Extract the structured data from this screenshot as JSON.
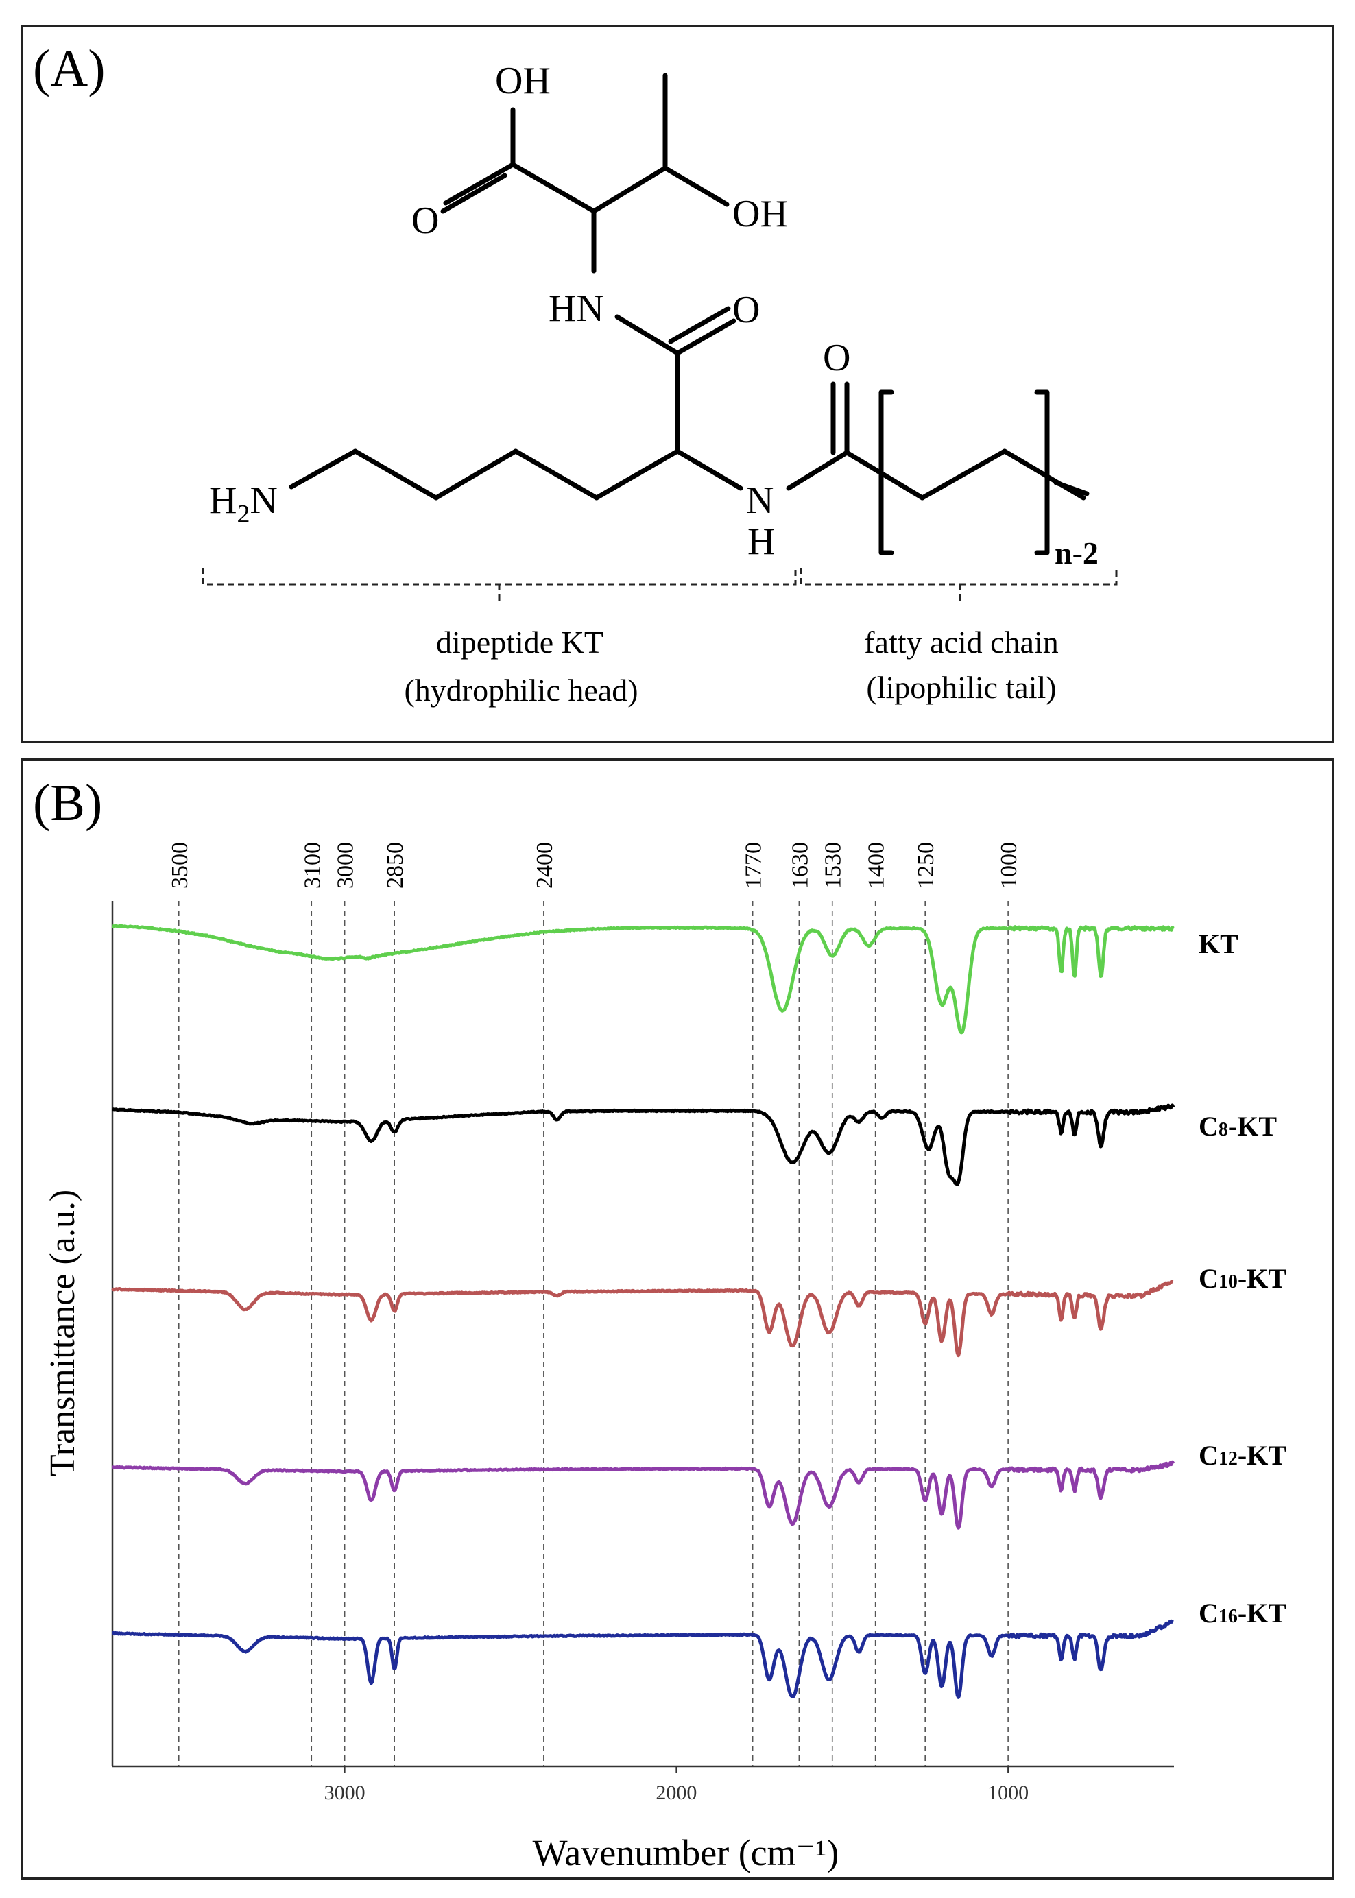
{
  "panel_a": {
    "label": "(A)",
    "atoms": {
      "oh_top": "OH",
      "o_acid": "O",
      "oh_side": "OH",
      "hn": "HN",
      "o_amide1": "O",
      "o_amide2": "O",
      "h2n": "H",
      "h2n_sub": "2",
      "h2n_n": "N",
      "nh_n": "N",
      "nh_h": "H",
      "n_minus_2": "n-2"
    },
    "head_label": [
      "dipeptide KT",
      "(hydrophilic head)"
    ],
    "tail_label": [
      "fatty acid chain",
      "(lipophilic tail)"
    ]
  },
  "panel_b": {
    "label": "(B)",
    "colors": {
      "KT": "#5fcf4d",
      "C8-KT": "#000000",
      "C10-KT": "#b85454",
      "C12-KT": "#8d3ca8",
      "C16-KT": "#1f2c98"
    },
    "chart_data": {
      "type": "line",
      "xlabel": "Wavenumber (cm⁻¹)",
      "ylabel": "Transmittance (a.u.)",
      "xlim": [
        3700,
        500
      ],
      "x_reversed": true,
      "xticks": [
        "3000",
        "2000",
        "1000"
      ],
      "xtick_values": [
        3000,
        2000,
        1000
      ],
      "reference_lines": [
        3500,
        3100,
        3000,
        2850,
        2400,
        1770,
        1630,
        1530,
        1400,
        1250,
        1000
      ],
      "reference_labels": [
        "3500",
        "3100",
        "3000",
        "2850",
        "2400",
        "1770",
        "1630",
        "1530",
        "1400",
        "1250",
        "1000"
      ],
      "series": [
        {
          "name": "KT",
          "name_main": "C",
          "name_sub": "",
          "name_rest": "",
          "label": "KT",
          "offset": 0,
          "baseline": [
            [
              3700,
              0
            ],
            [
              3600,
              3
            ],
            [
              3500,
              8
            ],
            [
              3400,
              16
            ],
            [
              3300,
              28
            ],
            [
              3200,
              38
            ],
            [
              3100,
              43
            ],
            [
              3000,
              45
            ],
            [
              2900,
              44
            ],
            [
              2800,
              37
            ],
            [
              2700,
              30
            ],
            [
              2600,
              22
            ],
            [
              2500,
              15
            ],
            [
              2400,
              9
            ],
            [
              2300,
              6
            ],
            [
              2200,
              4
            ],
            [
              2100,
              3
            ],
            [
              2000,
              3
            ],
            [
              1900,
              3
            ],
            [
              1800,
              4
            ],
            [
              600,
              4
            ],
            [
              500,
              4
            ]
          ],
          "peaks": [
            [
              3050,
              4,
              60
            ],
            [
              2930,
              3,
              20
            ],
            [
              1680,
              120,
              45
            ],
            [
              1530,
              40,
              30
            ],
            [
              1420,
              25,
              25
            ],
            [
              1200,
              110,
              30
            ],
            [
              1140,
              150,
              28
            ],
            [
              840,
              65,
              8
            ],
            [
              800,
              70,
              8
            ],
            [
              720,
              70,
              10
            ]
          ]
        },
        {
          "name": "C8-KT",
          "name_main": "C",
          "name_sub": "8",
          "name_rest": "-KT",
          "label": "",
          "offset": 0,
          "baseline": [
            [
              3700,
              0
            ],
            [
              3500,
              4
            ],
            [
              3300,
              14
            ],
            [
              3000,
              18
            ],
            [
              2800,
              14
            ],
            [
              2600,
              8
            ],
            [
              2400,
              3
            ],
            [
              2200,
              2
            ],
            [
              1800,
              2
            ],
            [
              600,
              4
            ],
            [
              500,
              -5
            ]
          ],
          "peaks": [
            [
              3280,
              6,
              50
            ],
            [
              2920,
              30,
              25
            ],
            [
              2850,
              18,
              15
            ],
            [
              2360,
              12,
              15
            ],
            [
              1650,
              75,
              50
            ],
            [
              1540,
              60,
              40
            ],
            [
              1450,
              15,
              20
            ],
            [
              1380,
              10,
              15
            ],
            [
              1240,
              55,
              25
            ],
            [
              1180,
              80,
              20
            ],
            [
              1150,
              95,
              20
            ],
            [
              840,
              30,
              8
            ],
            [
              800,
              35,
              8
            ],
            [
              720,
              50,
              12
            ]
          ]
        },
        {
          "name": "C10-KT",
          "name_main": "C",
          "name_sub": "10",
          "name_rest": "-KT",
          "label": "",
          "offset": 0,
          "baseline": [
            [
              3700,
              0
            ],
            [
              3000,
              8
            ],
            [
              2400,
              4
            ],
            [
              1800,
              2
            ],
            [
              600,
              10
            ],
            [
              500,
              -12
            ]
          ],
          "peaks": [
            [
              3300,
              25,
              35
            ],
            [
              2920,
              38,
              20
            ],
            [
              2850,
              25,
              12
            ],
            [
              2360,
              6,
              15
            ],
            [
              1720,
              60,
              20
            ],
            [
              1650,
              80,
              30
            ],
            [
              1540,
              60,
              30
            ],
            [
              1450,
              20,
              15
            ],
            [
              1250,
              45,
              15
            ],
            [
              1200,
              70,
              15
            ],
            [
              1150,
              90,
              15
            ],
            [
              1050,
              30,
              15
            ],
            [
              840,
              35,
              8
            ],
            [
              800,
              35,
              8
            ],
            [
              720,
              50,
              12
            ]
          ]
        },
        {
          "name": "C12-KT",
          "name_main": "C",
          "name_sub": "12",
          "name_rest": "-KT",
          "label": "",
          "offset": 0,
          "baseline": [
            [
              3700,
              0
            ],
            [
              3000,
              6
            ],
            [
              2400,
              3
            ],
            [
              1800,
              2
            ],
            [
              600,
              4
            ],
            [
              500,
              -6
            ]
          ],
          "peaks": [
            [
              3300,
              20,
              35
            ],
            [
              2920,
              42,
              18
            ],
            [
              2850,
              28,
              12
            ],
            [
              1720,
              55,
              20
            ],
            [
              1650,
              80,
              30
            ],
            [
              1540,
              55,
              30
            ],
            [
              1450,
              20,
              15
            ],
            [
              1250,
              45,
              15
            ],
            [
              1200,
              65,
              15
            ],
            [
              1150,
              85,
              15
            ],
            [
              1050,
              25,
              15
            ],
            [
              840,
              30,
              8
            ],
            [
              800,
              30,
              8
            ],
            [
              720,
              40,
              12
            ]
          ]
        },
        {
          "name": "C16-KT",
          "name_main": "C",
          "name_sub": "16",
          "name_rest": "-KT",
          "label": "",
          "offset": 0,
          "baseline": [
            [
              3700,
              0
            ],
            [
              3000,
              8
            ],
            [
              2400,
              4
            ],
            [
              1800,
              2
            ],
            [
              600,
              4
            ],
            [
              500,
              -18
            ]
          ],
          "peaks": [
            [
              3300,
              22,
              35
            ],
            [
              2920,
              65,
              15
            ],
            [
              2850,
              45,
              10
            ],
            [
              1720,
              65,
              20
            ],
            [
              1650,
              90,
              30
            ],
            [
              1540,
              65,
              30
            ],
            [
              1450,
              25,
              15
            ],
            [
              1250,
              55,
              15
            ],
            [
              1200,
              75,
              15
            ],
            [
              1150,
              90,
              15
            ],
            [
              1050,
              30,
              15
            ],
            [
              840,
              35,
              8
            ],
            [
              800,
              35,
              8
            ],
            [
              720,
              50,
              12
            ]
          ]
        }
      ]
    }
  }
}
